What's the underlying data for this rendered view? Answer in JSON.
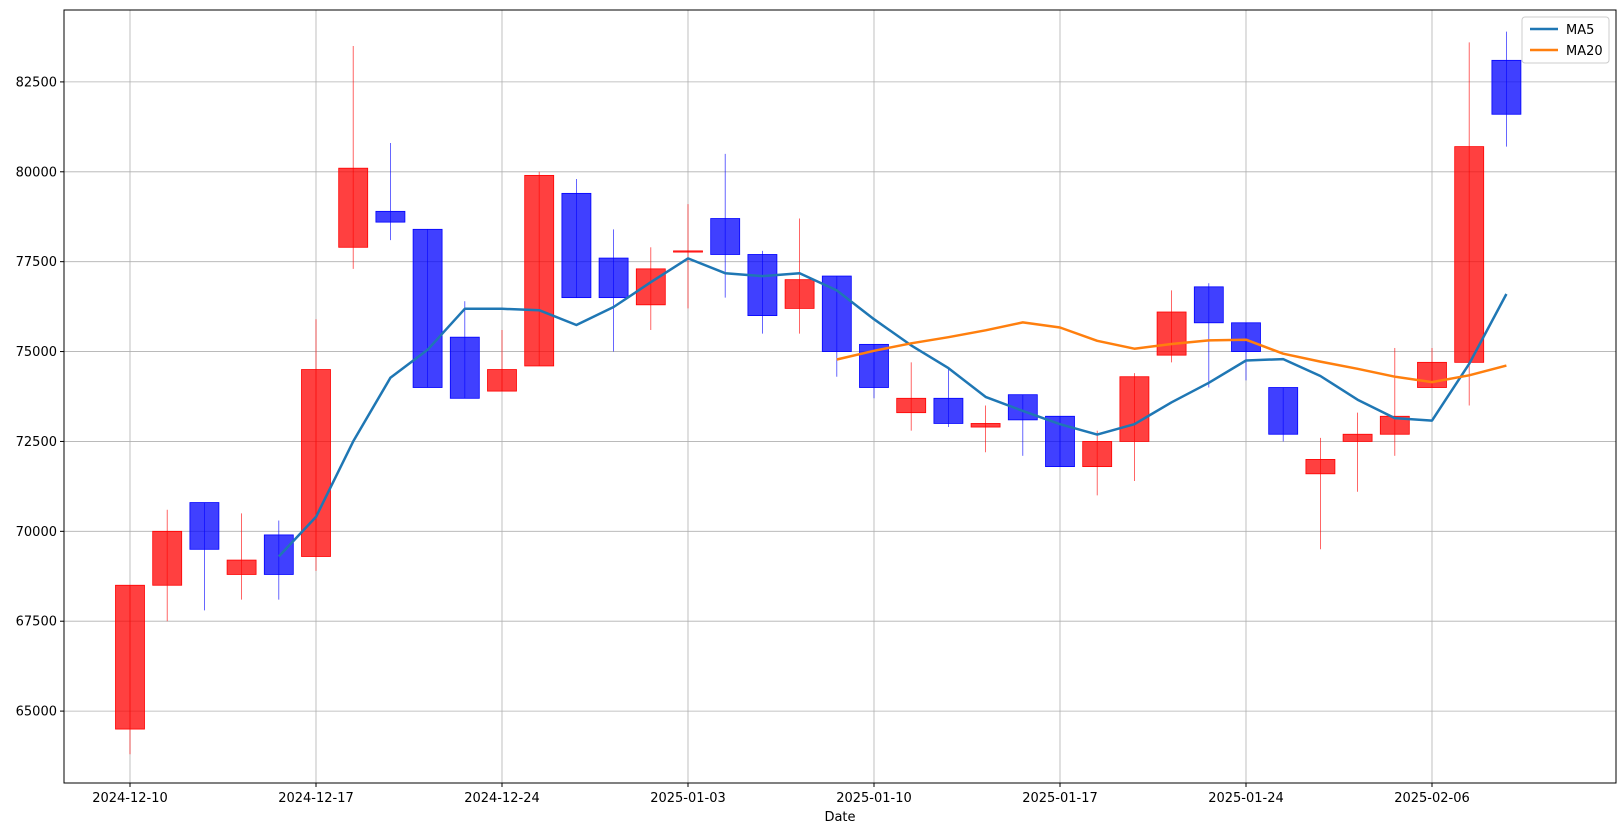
{
  "chart_data": {
    "type": "candlestick",
    "xlabel": "Date",
    "ylabel": "",
    "ylim": [
      63000,
      84500
    ],
    "grid": true,
    "legend_position": "top-right",
    "x_ticks": [
      "2024-12-10",
      "2024-12-17",
      "2024-12-24",
      "2025-01-03",
      "2025-01-10",
      "2025-01-17",
      "2025-01-24",
      "2025-02-06"
    ],
    "y_ticks": [
      65000,
      67500,
      70000,
      72500,
      75000,
      77500,
      80000,
      82500
    ],
    "colors": {
      "up": "#ff0000",
      "down": "#0000ff",
      "ma5": "#1f77b4",
      "ma20": "#ff7f0e",
      "grid": "#b0b0b0"
    },
    "candles": [
      {
        "date": "2024-12-10",
        "open": 64500,
        "high": 68500,
        "low": 63800,
        "close": 68500
      },
      {
        "date": "2024-12-11",
        "open": 68500,
        "high": 70600,
        "low": 67500,
        "close": 70000
      },
      {
        "date": "2024-12-12",
        "open": 70800,
        "high": 70800,
        "low": 67800,
        "close": 69500
      },
      {
        "date": "2024-12-13",
        "open": 68800,
        "high": 70500,
        "low": 68100,
        "close": 69200
      },
      {
        "date": "2024-12-16",
        "open": 69900,
        "high": 70300,
        "low": 68100,
        "close": 68800
      },
      {
        "date": "2024-12-17",
        "open": 69300,
        "high": 75900,
        "low": 68900,
        "close": 74500
      },
      {
        "date": "2024-12-18",
        "open": 77900,
        "high": 83500,
        "low": 77300,
        "close": 80100
      },
      {
        "date": "2024-12-19",
        "open": 78900,
        "high": 80800,
        "low": 78100,
        "close": 78600
      },
      {
        "date": "2024-12-20",
        "open": 78400,
        "high": 78400,
        "low": 74000,
        "close": 74000
      },
      {
        "date": "2024-12-23",
        "open": 75400,
        "high": 76400,
        "low": 73700,
        "close": 73700
      },
      {
        "date": "2024-12-24",
        "open": 73900,
        "high": 75600,
        "low": 73900,
        "close": 74500
      },
      {
        "date": "2024-12-26",
        "open": 74600,
        "high": 80000,
        "low": 74600,
        "close": 79900
      },
      {
        "date": "2024-12-27",
        "open": 79400,
        "high": 79800,
        "low": 76500,
        "close": 76500
      },
      {
        "date": "2024-12-30",
        "open": 77600,
        "high": 78400,
        "low": 75000,
        "close": 76500
      },
      {
        "date": "2024-12-31",
        "open": 76300,
        "high": 77900,
        "low": 75600,
        "close": 77300
      },
      {
        "date": "2025-01-03",
        "open": 77800,
        "high": 79100,
        "low": 76200,
        "close": 77800
      },
      {
        "date": "2025-01-06",
        "open": 78700,
        "high": 80500,
        "low": 76500,
        "close": 77700
      },
      {
        "date": "2025-01-07",
        "open": 77700,
        "high": 77800,
        "low": 75500,
        "close": 76000
      },
      {
        "date": "2025-01-08",
        "open": 76200,
        "high": 78700,
        "low": 75500,
        "close": 77000
      },
      {
        "date": "2025-01-09",
        "open": 77100,
        "high": 77100,
        "low": 74300,
        "close": 75000
      },
      {
        "date": "2025-01-10",
        "open": 75200,
        "high": 75200,
        "low": 73700,
        "close": 74000
      },
      {
        "date": "2025-01-13",
        "open": 73300,
        "high": 74700,
        "low": 72800,
        "close": 73700
      },
      {
        "date": "2025-01-14",
        "open": 73700,
        "high": 74500,
        "low": 72900,
        "close": 73000
      },
      {
        "date": "2025-01-15",
        "open": 72900,
        "high": 73500,
        "low": 72200,
        "close": 73000
      },
      {
        "date": "2025-01-16",
        "open": 73800,
        "high": 73800,
        "low": 72100,
        "close": 73100
      },
      {
        "date": "2025-01-17",
        "open": 73200,
        "high": 73200,
        "low": 71800,
        "close": 71800
      },
      {
        "date": "2025-01-20",
        "open": 71800,
        "high": 72800,
        "low": 71000,
        "close": 72500
      },
      {
        "date": "2025-01-21",
        "open": 72500,
        "high": 74400,
        "low": 71400,
        "close": 74300
      },
      {
        "date": "2025-01-22",
        "open": 74900,
        "high": 76700,
        "low": 74700,
        "close": 76100
      },
      {
        "date": "2025-01-23",
        "open": 76800,
        "high": 76900,
        "low": 74000,
        "close": 75800
      },
      {
        "date": "2025-01-24",
        "open": 75800,
        "high": 75800,
        "low": 74200,
        "close": 75000
      },
      {
        "date": "2025-01-31",
        "open": 74000,
        "high": 74000,
        "low": 72500,
        "close": 72700
      },
      {
        "date": "2025-02-03",
        "open": 71600,
        "high": 72600,
        "low": 69500,
        "close": 72000
      },
      {
        "date": "2025-02-04",
        "open": 72500,
        "high": 73300,
        "low": 71100,
        "close": 72700
      },
      {
        "date": "2025-02-05",
        "open": 72700,
        "high": 75100,
        "low": 72100,
        "close": 73200
      },
      {
        "date": "2025-02-06",
        "open": 74000,
        "high": 75100,
        "low": 74000,
        "close": 74700
      },
      {
        "date": "2025-02-07",
        "open": 74700,
        "high": 83600,
        "low": 73500,
        "close": 80700
      },
      {
        "date": "2025-02-10",
        "open": 83100,
        "high": 83900,
        "low": 80700,
        "close": 81600
      }
    ],
    "series": [
      {
        "name": "MA5",
        "start_index": 4,
        "values": [
          69300,
          70400,
          72500,
          74270,
          75050,
          76190,
          76190,
          76150,
          75740,
          76240,
          76930,
          77590,
          77180,
          77100,
          77180,
          76700,
          75900,
          75170,
          74540,
          73740,
          73350,
          72980,
          72690,
          72980,
          73590,
          74130,
          74750,
          74790,
          74320,
          73660,
          73150,
          73080,
          74660,
          76600
        ]
      },
      {
        "name": "MA20",
        "start_index": 19,
        "values": [
          74780,
          75020,
          75230,
          75400,
          75590,
          75810,
          75670,
          75300,
          75080,
          75210,
          75310,
          75330,
          74940,
          74720,
          74520,
          74300,
          74150,
          74340,
          74610
        ]
      }
    ]
  }
}
